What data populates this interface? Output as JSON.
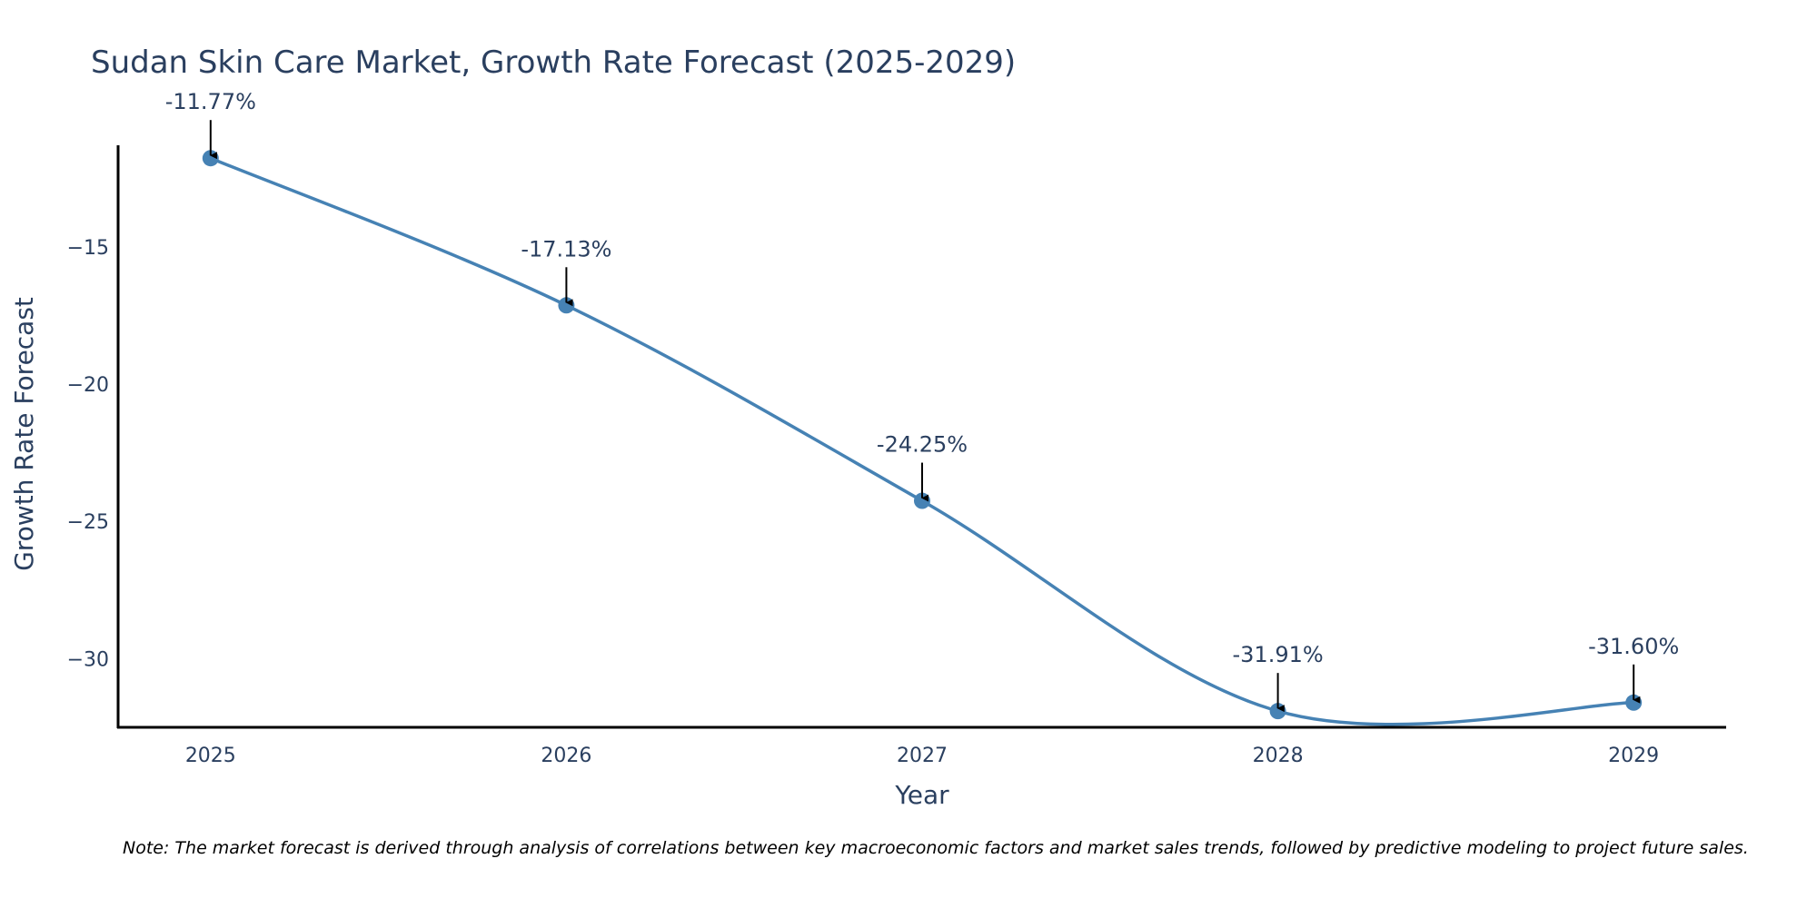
{
  "chart_data": {
    "type": "line",
    "title": "Sudan Skin Care Market, Growth Rate Forecast (2025-2029)",
    "xlabel": "Year",
    "ylabel": "Growth Rate Forecast",
    "categories": [
      "2025",
      "2026",
      "2027",
      "2028",
      "2029"
    ],
    "x": [
      2025,
      2026,
      2027,
      2028,
      2029
    ],
    "values": [
      -11.77,
      -17.13,
      -24.25,
      -31.91,
      -31.6
    ],
    "data_labels": [
      "-11.77%",
      "-17.13%",
      "-24.25%",
      "-31.91%",
      "-31.60%"
    ],
    "xlim": [
      2024.74,
      2029.26
    ],
    "ylim": [
      -32.5,
      -11.3
    ],
    "yticks": [
      -15,
      -20,
      -25,
      -30
    ],
    "ytick_labels": [
      "−15",
      "−20",
      "−25",
      "−30"
    ],
    "line_shape": "spline",
    "grid": false,
    "legend": false,
    "series_color": "#4682b4",
    "annotation_arrow_color": "#000000",
    "note": "Note: The market forecast is derived through analysis of correlations between key macroeconomic factors and market sales trends, followed by predictive modeling to project future sales."
  }
}
